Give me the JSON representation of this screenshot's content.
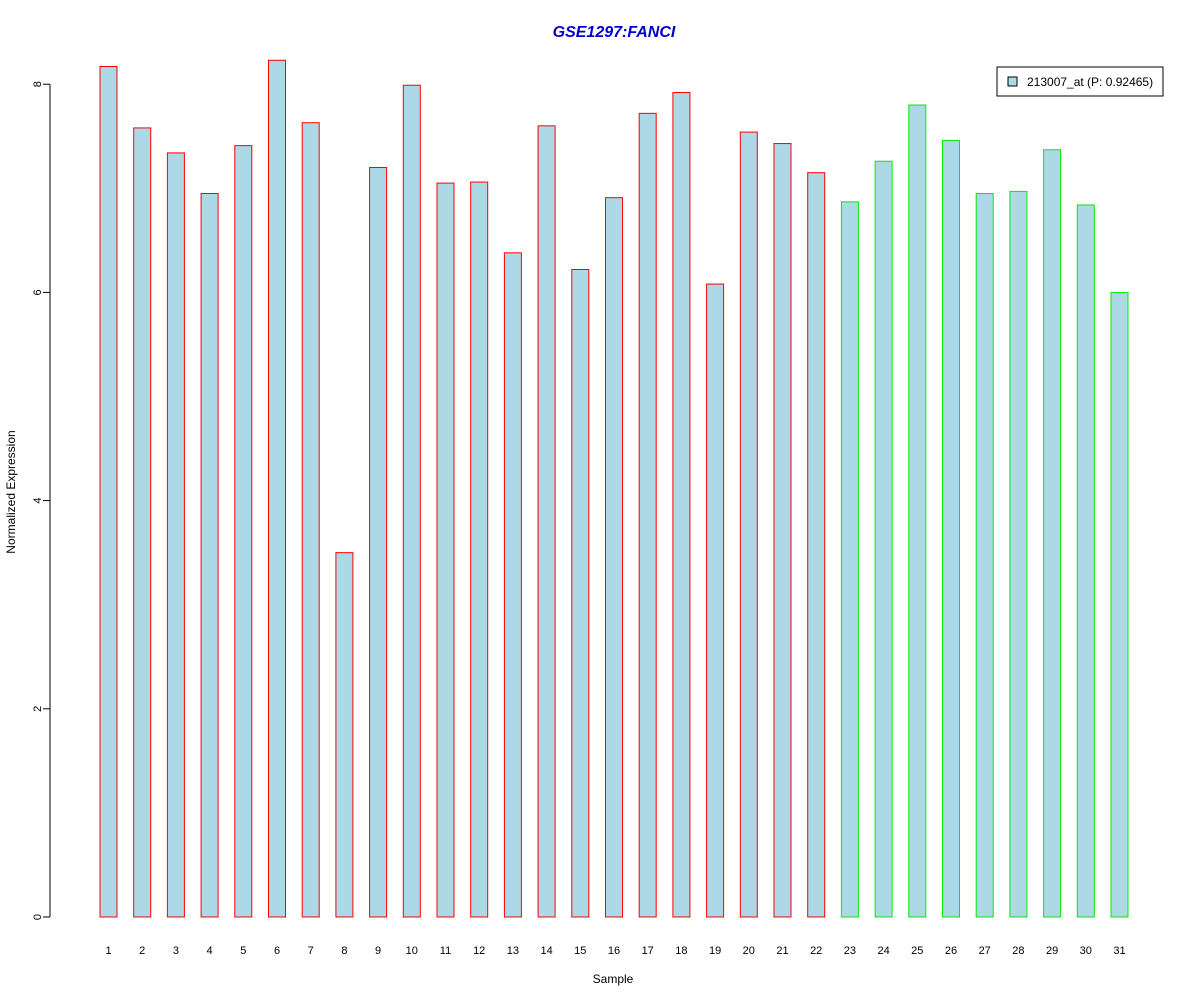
{
  "chart_data": {
    "type": "bar",
    "title": "GSE1297:FANCI",
    "title_color": "#0000cc",
    "xlabel": "Sample",
    "ylabel": "Normalized Expression",
    "ylim": [
      0,
      8
    ],
    "yticks": [
      0,
      2,
      4,
      6,
      8
    ],
    "grid": false,
    "legend_position": "top-right",
    "bar_fill": "#add8e6",
    "categories": [
      "1",
      "2",
      "3",
      "4",
      "5",
      "6",
      "7",
      "8",
      "9",
      "10",
      "11",
      "12",
      "13",
      "14",
      "15",
      "16",
      "17",
      "18",
      "19",
      "20",
      "21",
      "22",
      "23",
      "24",
      "25",
      "26",
      "27",
      "28",
      "29",
      "30",
      "31"
    ],
    "series": [
      {
        "name": "213007_at (P: 0.92465)",
        "values": [
          8.17,
          7.58,
          7.34,
          6.95,
          7.41,
          8.23,
          7.63,
          3.5,
          7.2,
          7.99,
          7.05,
          7.06,
          6.38,
          7.6,
          6.22,
          6.91,
          7.72,
          7.92,
          6.08,
          7.54,
          7.43,
          7.15,
          6.87,
          7.26,
          7.8,
          7.46,
          6.95,
          6.97,
          7.37,
          6.84,
          6.0
        ],
        "border_colors": [
          "#ff0000",
          "#ff0000",
          "#ff0000",
          "#ff0000",
          "#ff0000",
          "#ff0000",
          "#ff0000",
          "#ff0000",
          "#ff0000",
          "#ff0000",
          "#ff0000",
          "#ff0000",
          "#ff0000",
          "#ff0000",
          "#ff0000",
          "#ff0000",
          "#ff0000",
          "#ff0000",
          "#ff0000",
          "#ff0000",
          "#ff0000",
          "#ff0000",
          "#00ee00",
          "#00ee00",
          "#00ee00",
          "#00ee00",
          "#00ee00",
          "#00ee00",
          "#00ee00",
          "#00ee00",
          "#00ee00"
        ]
      }
    ]
  }
}
